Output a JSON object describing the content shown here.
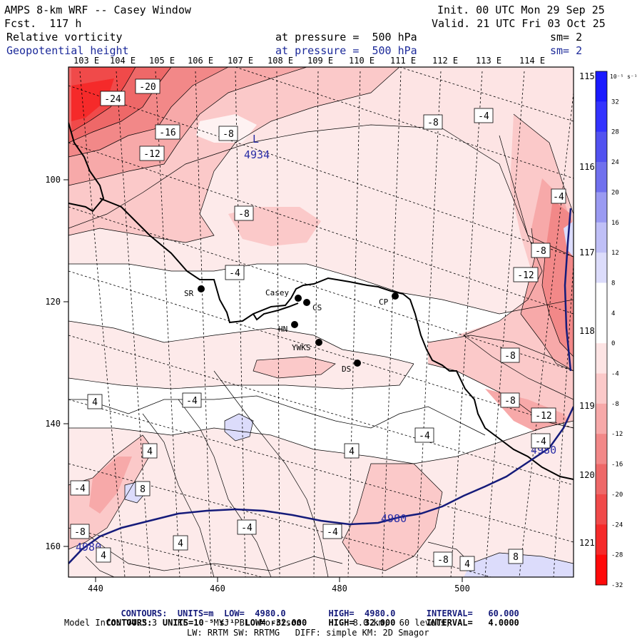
{
  "header": {
    "title": "AMPS 8-km WRF -- Casey Window",
    "fcst": "Fcst.  117 h",
    "init": "Init. 00 UTC Mon 29 Sep 25",
    "valid": "Valid. 21 UTC Fri 03 Oct 25",
    "field1": {
      "name": "Relative vorticity",
      "level": "at pressure =  500 hPa",
      "sm": "sm= 2"
    },
    "field2": {
      "name": "Geopotential height",
      "level": "at pressure =  500 hPa",
      "sm": "sm= 2"
    }
  },
  "lon_labels": [
    "103 E",
    "104 E",
    "105 E",
    "106 E",
    "107 E",
    "108 E",
    "109 E",
    "110 E",
    "111 E",
    "112 E",
    "113 E",
    "114 E"
  ],
  "right_lon_labels": [
    "115 E",
    "116 E",
    "117 E",
    "118 E",
    "119 E",
    "120 E",
    "121 E"
  ],
  "x_ticks": [
    "440",
    "460",
    "480",
    "500"
  ],
  "y_ticks": [
    "100",
    "120",
    "140",
    "160"
  ],
  "colorbar": {
    "unit": "10⁻⁵ s⁻¹",
    "labels": [
      "32",
      "28",
      "24",
      "20",
      "16",
      "12",
      "8",
      "4",
      "0",
      "-4",
      "-8",
      "-12",
      "-16",
      "-20",
      "-24",
      "-28",
      "-32"
    ],
    "colors": [
      "#1a1aff",
      "#3333ff",
      "#5252f0",
      "#7070ee",
      "#9a9af2",
      "#bfbff7",
      "#dcdcfb",
      "#ffffff",
      "#ffffff",
      "#fde4e4",
      "#fbc9c9",
      "#f7a9a9",
      "#f28888",
      "#ee6868",
      "#f04a4a",
      "#f52a2a",
      "#ff0a0a"
    ]
  },
  "stations": [
    {
      "label": "SR"
    },
    {
      "label": "Casey"
    },
    {
      "label": "CS"
    },
    {
      "label": "CP"
    },
    {
      "label": "HN"
    },
    {
      "label": "YWKS"
    },
    {
      "label": "DS"
    }
  ],
  "height_labels": [
    "L",
    "4934",
    "4980",
    "4980",
    "4980"
  ],
  "vort_labels": [
    "-24",
    "-20",
    "-16",
    "-12",
    "-8",
    "-8",
    "-8",
    "-4",
    "-8",
    "-4",
    "-12",
    "-8",
    "-8",
    "-12",
    "-4",
    "4",
    "-4",
    "4",
    "-4",
    "-4",
    "4",
    "8",
    "-8",
    "4",
    "4",
    "-4",
    "-4",
    "-8",
    "4",
    "8",
    "-4"
  ],
  "footer": {
    "line1_a": "CONTOURS:  UNITS=m  LOW=  4980.0",
    "line1_b": "HIGH=  4980.0      INTERVAL=   60.000",
    "line2_a": "CONTOURS:  UNITS=10⁻⁵ s⁻¹  LOW= -32.000",
    "line2_b": "HIGH=  32.000      INTERVAL=   4.0000",
    "line3": "Model Info: V4.3.3    KF     MYJ PBL  Morrison          8.0 km,  60 levels,",
    "line4": "LW: RRTM SW: RRTMG   DIFF: simple KM: 2D Smagor"
  }
}
